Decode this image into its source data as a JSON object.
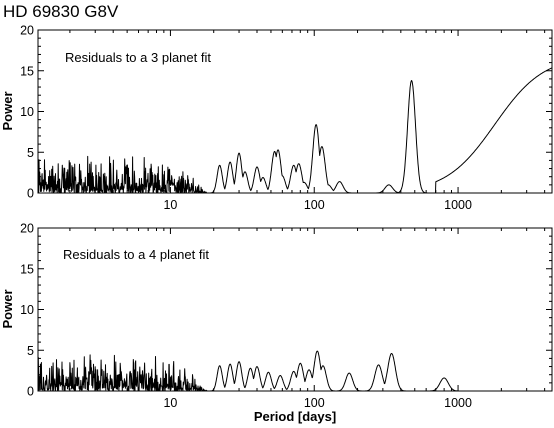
{
  "figure": {
    "title": "HD 69830   G8V",
    "xlabel": "Period [days]"
  },
  "chart_data": [
    {
      "type": "line",
      "annotation": "Residuals to a 3 planet fit",
      "xlabel": "",
      "ylabel": "Power",
      "xscale": "log",
      "xlim": [
        1.2,
        4500
      ],
      "ylim": [
        0,
        20
      ],
      "xticks": [
        10,
        100,
        1000
      ],
      "xtick_labels": [
        "10",
        "100",
        "1000"
      ],
      "yticks": [
        0,
        5,
        10,
        15,
        20
      ],
      "grid": false,
      "legend": "none",
      "noise": {
        "x_start": 1.2,
        "x_end": 10,
        "typical_peak": 2.5,
        "max_peak": 4.5
      },
      "peaks": [
        {
          "x": 22,
          "y": 3.4
        },
        {
          "x": 26,
          "y": 3.8
        },
        {
          "x": 30,
          "y": 4.9
        },
        {
          "x": 33,
          "y": 2.6
        },
        {
          "x": 40,
          "y": 3.2
        },
        {
          "x": 44,
          "y": 1.9
        },
        {
          "x": 53,
          "y": 5.1
        },
        {
          "x": 56,
          "y": 5.3
        },
        {
          "x": 60,
          "y": 2.1
        },
        {
          "x": 72,
          "y": 3.4
        },
        {
          "x": 78,
          "y": 3.6
        },
        {
          "x": 85,
          "y": 1.3
        },
        {
          "x": 103,
          "y": 8.4
        },
        {
          "x": 113,
          "y": 5.7
        },
        {
          "x": 125,
          "y": 1.0
        },
        {
          "x": 150,
          "y": 1.4
        },
        {
          "x": 330,
          "y": 1.0
        },
        {
          "x": 475,
          "y": 13.8
        }
      ],
      "rise": {
        "x_start": 1000,
        "x_mid": 1800,
        "y_end": 16.5
      }
    },
    {
      "type": "line",
      "annotation": "Residuals to a 4 planet fit",
      "xlabel": "Period [days]",
      "ylabel": "Power",
      "xscale": "log",
      "xlim": [
        1.2,
        4500
      ],
      "ylim": [
        0,
        20
      ],
      "xticks": [
        10,
        100,
        1000
      ],
      "xtick_labels": [
        "10",
        "100",
        "1000"
      ],
      "yticks": [
        0,
        5,
        10,
        15,
        20
      ],
      "grid": false,
      "legend": "none",
      "noise": {
        "x_start": 1.2,
        "x_end": 10,
        "typical_peak": 2.3,
        "max_peak": 4.5
      },
      "peaks": [
        {
          "x": 22,
          "y": 3.1
        },
        {
          "x": 26,
          "y": 3.3
        },
        {
          "x": 30,
          "y": 3.6
        },
        {
          "x": 36,
          "y": 2.8
        },
        {
          "x": 40,
          "y": 3.0
        },
        {
          "x": 48,
          "y": 2.3
        },
        {
          "x": 58,
          "y": 1.9
        },
        {
          "x": 72,
          "y": 2.4
        },
        {
          "x": 80,
          "y": 3.4
        },
        {
          "x": 92,
          "y": 2.6
        },
        {
          "x": 105,
          "y": 4.9
        },
        {
          "x": 115,
          "y": 3.1
        },
        {
          "x": 175,
          "y": 2.2
        },
        {
          "x": 280,
          "y": 3.2
        },
        {
          "x": 345,
          "y": 4.6
        },
        {
          "x": 800,
          "y": 1.6
        }
      ]
    }
  ]
}
